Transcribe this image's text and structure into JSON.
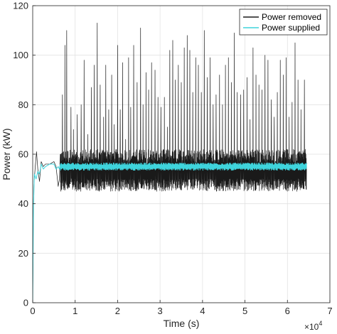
{
  "chart_data": {
    "type": "line",
    "xlabel": "Time (s)",
    "ylabel": "Power (kW)",
    "x_multiplier_label": "×10",
    "x_multiplier_exponent": "4",
    "xlim": [
      0,
      70000
    ],
    "ylim": [
      0,
      120
    ],
    "x_ticks": [
      0,
      10000,
      20000,
      30000,
      40000,
      50000,
      60000,
      70000
    ],
    "x_tick_labels": [
      "0",
      "1",
      "2",
      "3",
      "4",
      "5",
      "6",
      "7"
    ],
    "y_ticks": [
      0,
      20,
      40,
      60,
      80,
      100,
      120
    ],
    "y_tick_labels": [
      "0",
      "20",
      "40",
      "60",
      "80",
      "100",
      "120"
    ],
    "grid": true,
    "legend_placement": "top-right",
    "series": [
      {
        "name": "Power removed",
        "color": "#1a1a1a",
        "startup": [
          [
            0,
            0
          ],
          [
            150,
            36
          ],
          [
            300,
            48
          ],
          [
            600,
            55
          ],
          [
            900,
            61
          ],
          [
            1200,
            54
          ],
          [
            1600,
            49
          ],
          [
            2000,
            57
          ],
          [
            2500,
            55
          ],
          [
            3000,
            56
          ],
          [
            4000,
            56
          ],
          [
            5000,
            57
          ],
          [
            5500,
            55
          ],
          [
            6000,
            47
          ],
          [
            6300,
            50
          ]
        ],
        "band": {
          "x_start": 6500,
          "x_end": 64500,
          "low": 45,
          "high": 62,
          "base": 53
        },
        "spikes": [
          [
            7000,
            84
          ],
          [
            7600,
            104
          ],
          [
            8000,
            110
          ],
          [
            9000,
            79
          ],
          [
            9600,
            70
          ],
          [
            10500,
            76
          ],
          [
            11400,
            80
          ],
          [
            12100,
            98
          ],
          [
            13000,
            68
          ],
          [
            13800,
            87
          ],
          [
            14500,
            96
          ],
          [
            15200,
            113
          ],
          [
            15900,
            88
          ],
          [
            16700,
            75
          ],
          [
            17200,
            96
          ],
          [
            17900,
            78
          ],
          [
            18600,
            92
          ],
          [
            19200,
            72
          ],
          [
            20000,
            104
          ],
          [
            20600,
            78
          ],
          [
            21200,
            97
          ],
          [
            21900,
            66
          ],
          [
            22600,
            99
          ],
          [
            23100,
            79
          ],
          [
            23800,
            104
          ],
          [
            24600,
            89
          ],
          [
            25400,
            111
          ],
          [
            26000,
            80
          ],
          [
            26700,
            93
          ],
          [
            27300,
            86
          ],
          [
            28000,
            97
          ],
          [
            28800,
            94
          ],
          [
            29500,
            83
          ],
          [
            30200,
            79
          ],
          [
            31000,
            83
          ],
          [
            31700,
            71
          ],
          [
            32300,
            102
          ],
          [
            33000,
            106
          ],
          [
            33600,
            90
          ],
          [
            34300,
            96
          ],
          [
            35000,
            89
          ],
          [
            35700,
            103
          ],
          [
            36400,
            108
          ],
          [
            37000,
            102
          ],
          [
            37700,
            85
          ],
          [
            38400,
            99
          ],
          [
            39000,
            96
          ],
          [
            39700,
            85
          ],
          [
            40400,
            110
          ],
          [
            41100,
            91
          ],
          [
            41800,
            99
          ],
          [
            42500,
            80
          ],
          [
            43200,
            84
          ],
          [
            44000,
            92
          ],
          [
            44700,
            80
          ],
          [
            45400,
            96
          ],
          [
            46100,
            99
          ],
          [
            46800,
            89
          ],
          [
            47500,
            109
          ],
          [
            48200,
            85
          ],
          [
            49000,
            84
          ],
          [
            49700,
            86
          ],
          [
            50500,
            91
          ],
          [
            51200,
            74
          ],
          [
            51900,
            103
          ],
          [
            52600,
            92
          ],
          [
            53300,
            88
          ],
          [
            54000,
            86
          ],
          [
            54700,
            100
          ],
          [
            55400,
            98
          ],
          [
            56200,
            82
          ],
          [
            56900,
            75
          ],
          [
            57600,
            85
          ],
          [
            58300,
            98
          ],
          [
            59000,
            92
          ],
          [
            59700,
            99
          ],
          [
            60400,
            75
          ],
          [
            61100,
            81
          ],
          [
            61800,
            105
          ],
          [
            62500,
            90
          ],
          [
            63200,
            78
          ],
          [
            64000,
            90
          ]
        ]
      },
      {
        "name": "Power supplied",
        "color": "#3fd4dc",
        "startup": [
          [
            0,
            0
          ],
          [
            200,
            40
          ],
          [
            400,
            52
          ],
          [
            800,
            50
          ],
          [
            1200,
            53
          ],
          [
            1600,
            52
          ],
          [
            2000,
            56
          ],
          [
            2500,
            54
          ],
          [
            3000,
            55
          ],
          [
            4000,
            56
          ],
          [
            5000,
            56
          ],
          [
            5500,
            54
          ],
          [
            6000,
            55
          ],
          [
            6300,
            54
          ]
        ],
        "band": {
          "x_start": 6500,
          "x_end": 64500,
          "low": 53.5,
          "high": 56.5,
          "base": 55
        }
      }
    ]
  }
}
